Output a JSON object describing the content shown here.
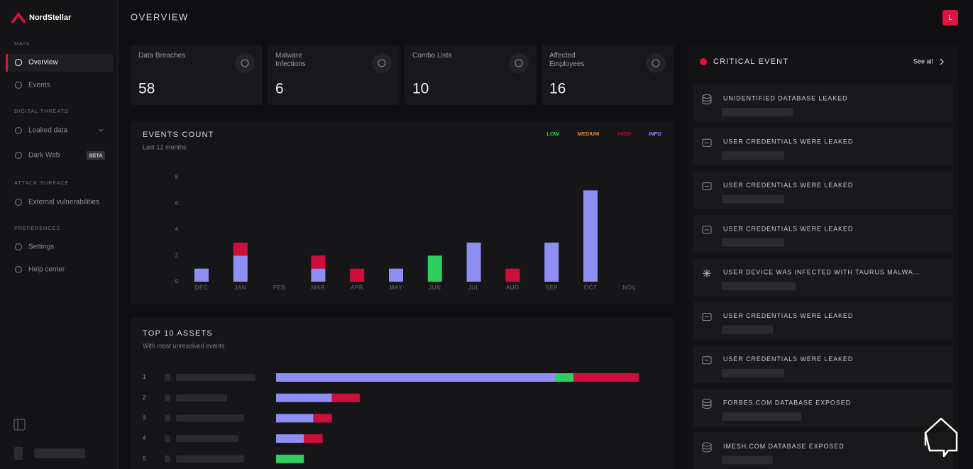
{
  "sidebar": {
    "logo": "NordStellar",
    "badge": "BETA",
    "sections": [
      {
        "title": "MAIN",
        "items": [
          "Overview",
          "Events"
        ]
      },
      {
        "title": "DIGITAL THREATS",
        "items": [
          "Leaked data",
          "Dark Web"
        ]
      },
      {
        "title": "ATTACK SURFACE",
        "items": [
          "External vulnerabilities"
        ]
      },
      {
        "title": "PREFERENCES",
        "items": [
          "Settings",
          "Help center"
        ]
      }
    ]
  },
  "header": {
    "title": "OVERVIEW",
    "avatar": "L"
  },
  "stats": [
    {
      "label": "Data Breaches",
      "value": 58
    },
    {
      "label": "Malware Infections",
      "value": 6
    },
    {
      "label": "Combo Lists",
      "value": 10
    },
    {
      "label": "Affected Employees",
      "value": 16
    }
  ],
  "chart_data": [
    {
      "type": "bar",
      "title": "EVENTS COUNT",
      "subtitle": "Last 12 months",
      "stacked": true,
      "categories": [
        "DEC",
        "JAN",
        "FEB",
        "MAR",
        "APR",
        "MAY",
        "JUN",
        "JUL",
        "AUG",
        "SEP",
        "OCT",
        "NOV"
      ],
      "series": [
        {
          "name": "LOW",
          "color": "#2fcc5e",
          "values": [
            0,
            0,
            0,
            0,
            0,
            0,
            2,
            0,
            0,
            0,
            0,
            0
          ]
        },
        {
          "name": "MEDIUM",
          "color": "#e5823c",
          "values": [
            0,
            0,
            0,
            0,
            0,
            0,
            0,
            0,
            0,
            0,
            0,
            0
          ]
        },
        {
          "name": "HIGH",
          "color": "#cf0f3b",
          "values": [
            0,
            1,
            0,
            1,
            1,
            0,
            0,
            0,
            1,
            0,
            0,
            0
          ]
        },
        {
          "name": "INFO",
          "color": "#8e8ef5",
          "values": [
            1,
            2,
            0,
            1,
            0,
            1,
            0,
            3,
            0,
            3,
            7,
            0
          ]
        }
      ],
      "ylim": [
        0,
        8
      ],
      "yticks": [
        0,
        2,
        4,
        6,
        8
      ]
    },
    {
      "type": "bar",
      "orientation": "horizontal",
      "stacked": true,
      "title": "TOP 10 ASSETS",
      "subtitle": "With most unresolved events",
      "categories": [
        1,
        2,
        3,
        4,
        5
      ],
      "series": [
        {
          "color": "#8e8ef5",
          "values": [
            30,
            6,
            4,
            3,
            0
          ]
        },
        {
          "color": "#2fcc5e",
          "values": [
            2,
            0,
            0,
            0,
            3
          ]
        },
        {
          "color": "#cf0f3b",
          "values": [
            7,
            3,
            2,
            2,
            0
          ]
        }
      ]
    }
  ],
  "critical": {
    "title": "CRITICAL EVENT",
    "link": "See all",
    "events": [
      {
        "icon": "database",
        "title": "UNIDENTIFIED DATABASE LEAKED"
      },
      {
        "icon": "key",
        "title": "USER CREDENTIALS WERE LEAKED"
      },
      {
        "icon": "key",
        "title": "USER CREDENTIALS WERE LEAKED"
      },
      {
        "icon": "key",
        "title": "USER CREDENTIALS WERE LEAKED"
      },
      {
        "icon": "asterisk",
        "title": "USER DEVICE WAS INFECTED WITH TAURUS MALWA..."
      },
      {
        "icon": "key",
        "title": "USER CREDENTIALS WERE LEAKED"
      },
      {
        "icon": "key",
        "title": "USER CREDENTIALS WERE LEAKED"
      },
      {
        "icon": "database",
        "title": "FORBES.COM DATABASE EXPOSED"
      },
      {
        "icon": "database",
        "title": "IMESH.COM DATABASE EXPOSED"
      }
    ]
  }
}
